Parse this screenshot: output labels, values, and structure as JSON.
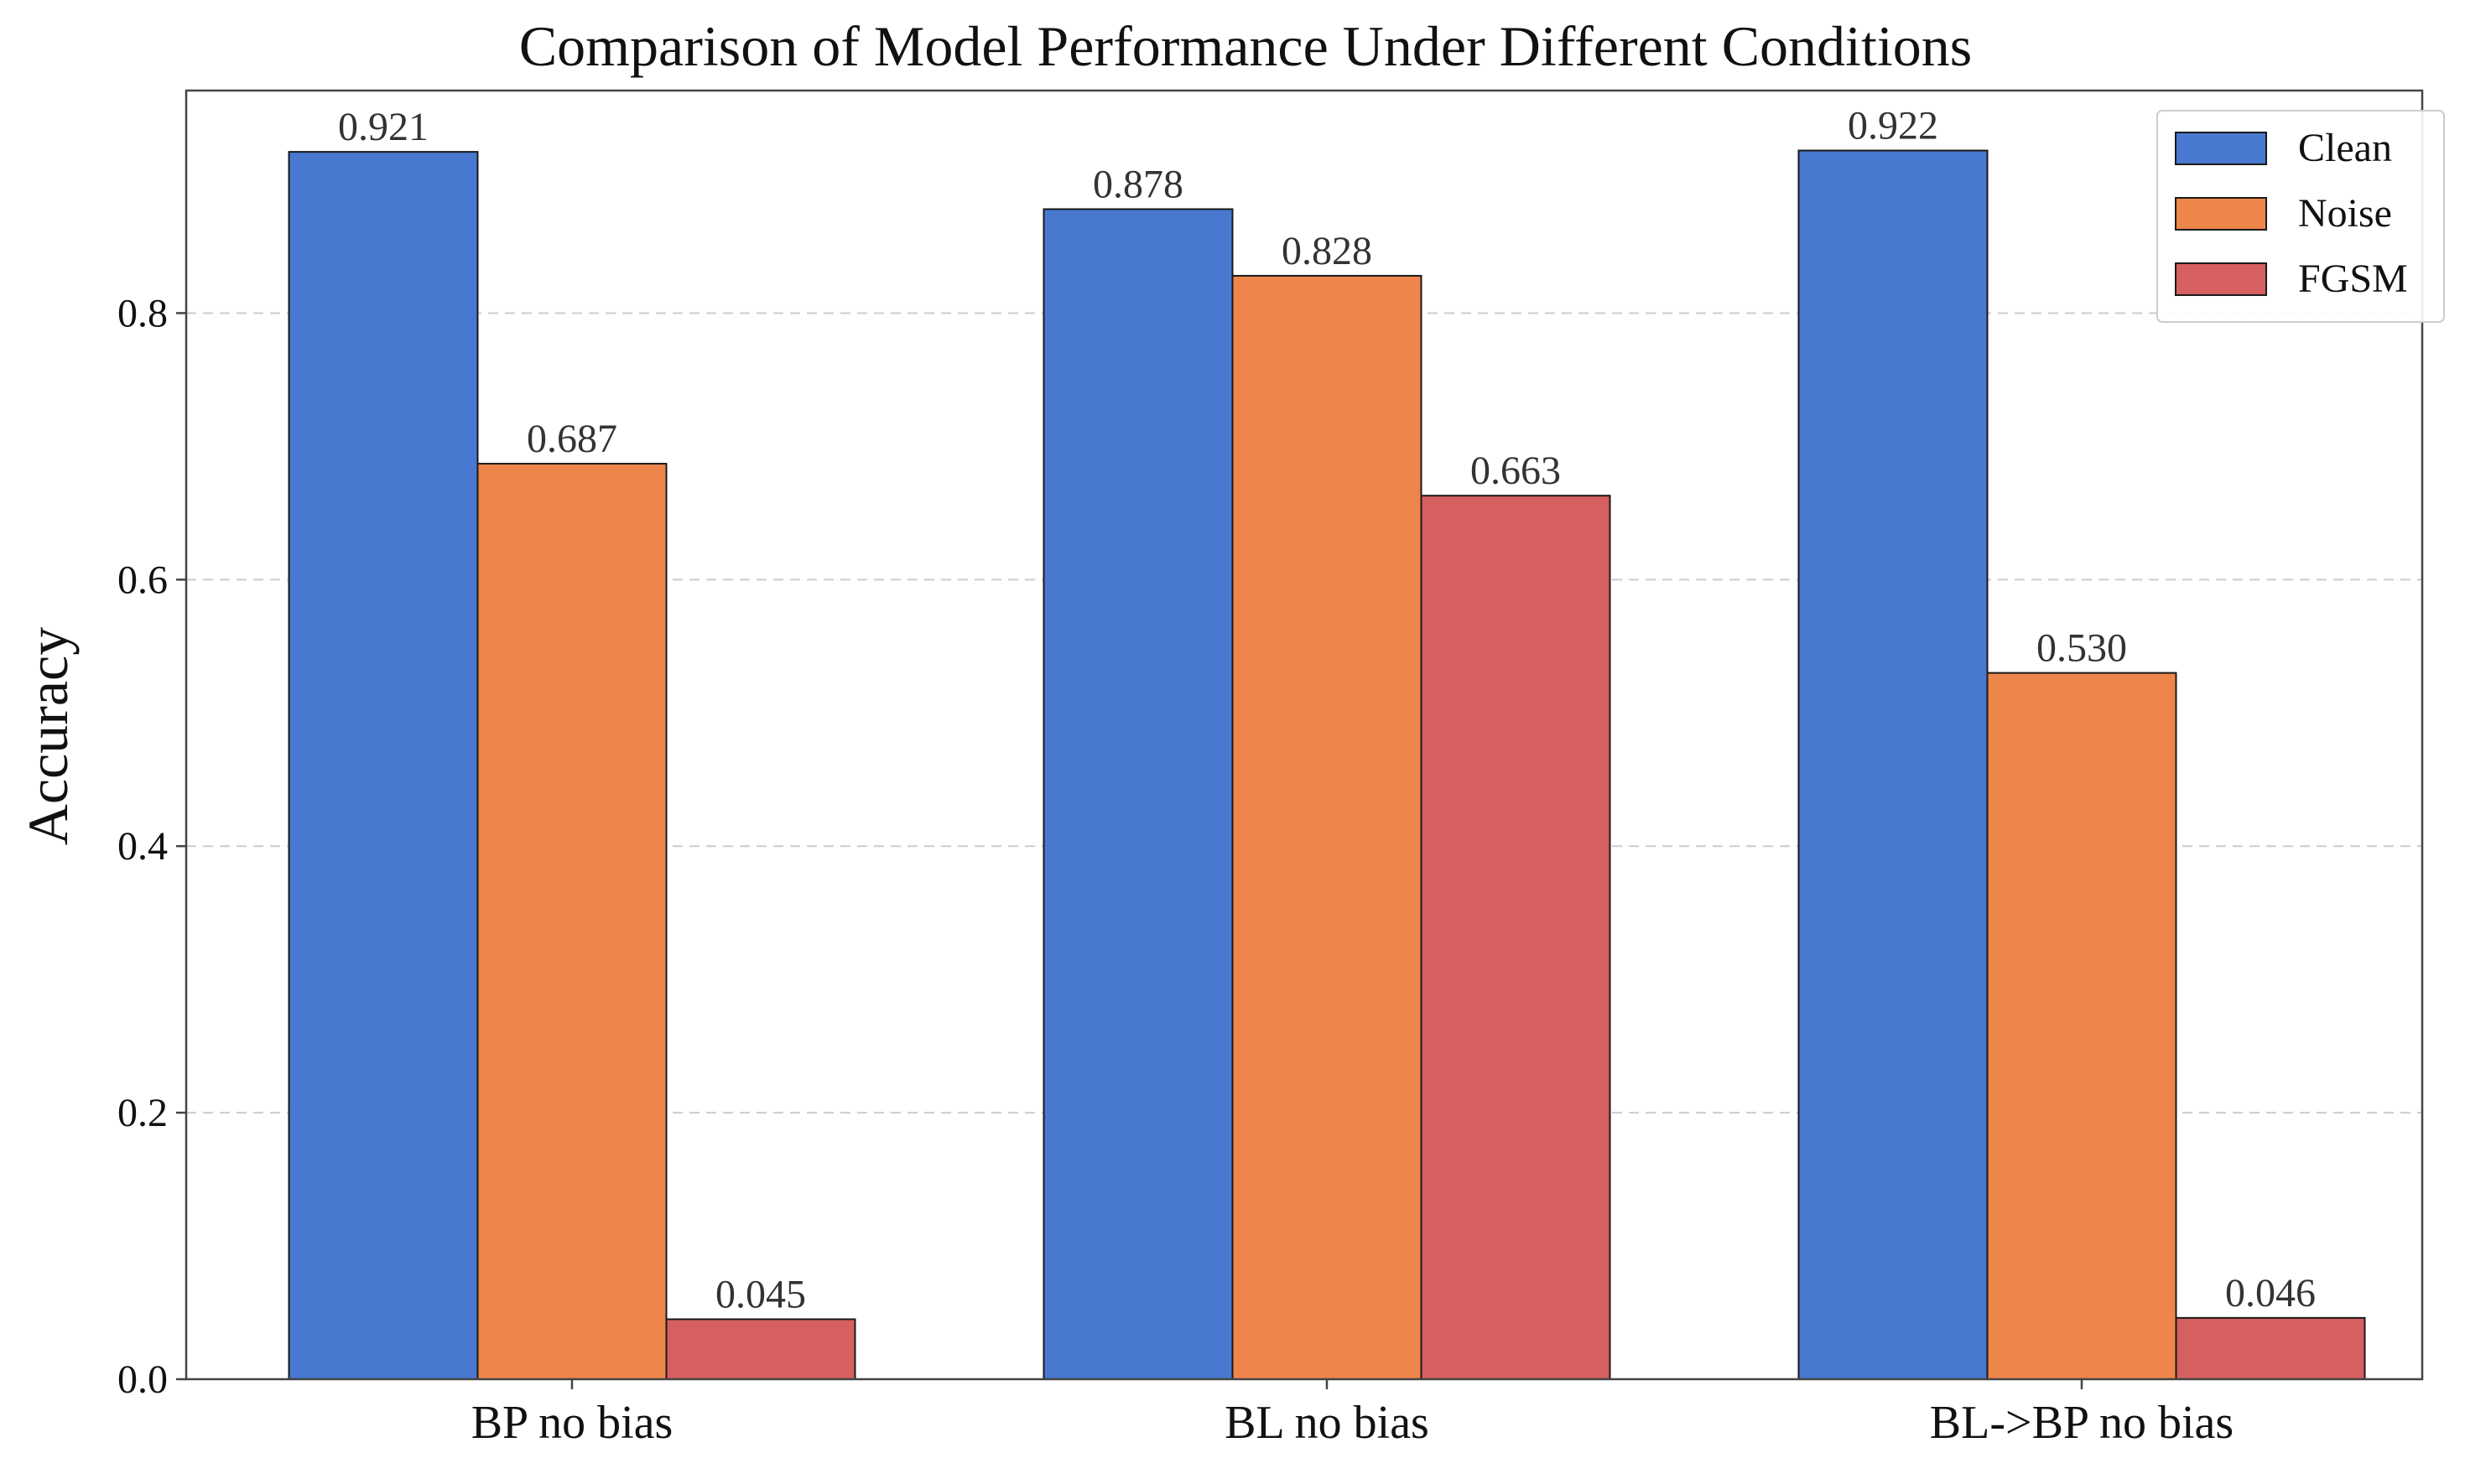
{
  "chart_data": {
    "type": "bar",
    "title": "Comparison of Model Performance Under Different Conditions",
    "xlabel": "",
    "ylabel": "Accuracy",
    "categories": [
      "BP no bias",
      "BL no bias",
      "BL->BP no bias"
    ],
    "series": [
      {
        "name": "Clean",
        "color": "#4878cf",
        "values": [
          0.921,
          0.878,
          0.922
        ],
        "labels": [
          "0.921",
          "0.878",
          "0.922"
        ]
      },
      {
        "name": "Noise",
        "color": "#ee854a",
        "values": [
          0.687,
          0.828,
          0.53
        ],
        "labels": [
          "0.687",
          "0.828",
          "0.530"
        ]
      },
      {
        "name": "FGSM",
        "color": "#d65f5f",
        "values": [
          0.045,
          0.663,
          0.046
        ],
        "labels": [
          "0.045",
          "0.663",
          "0.046"
        ]
      }
    ],
    "ylim": [
      0,
      0.967
    ],
    "yticks": [
      0.0,
      0.2,
      0.4,
      0.6,
      0.8
    ],
    "ytick_labels": [
      "0.0",
      "0.2",
      "0.4",
      "0.6",
      "0.8"
    ],
    "grid": "y-dashed",
    "legend_position": "top-right"
  }
}
